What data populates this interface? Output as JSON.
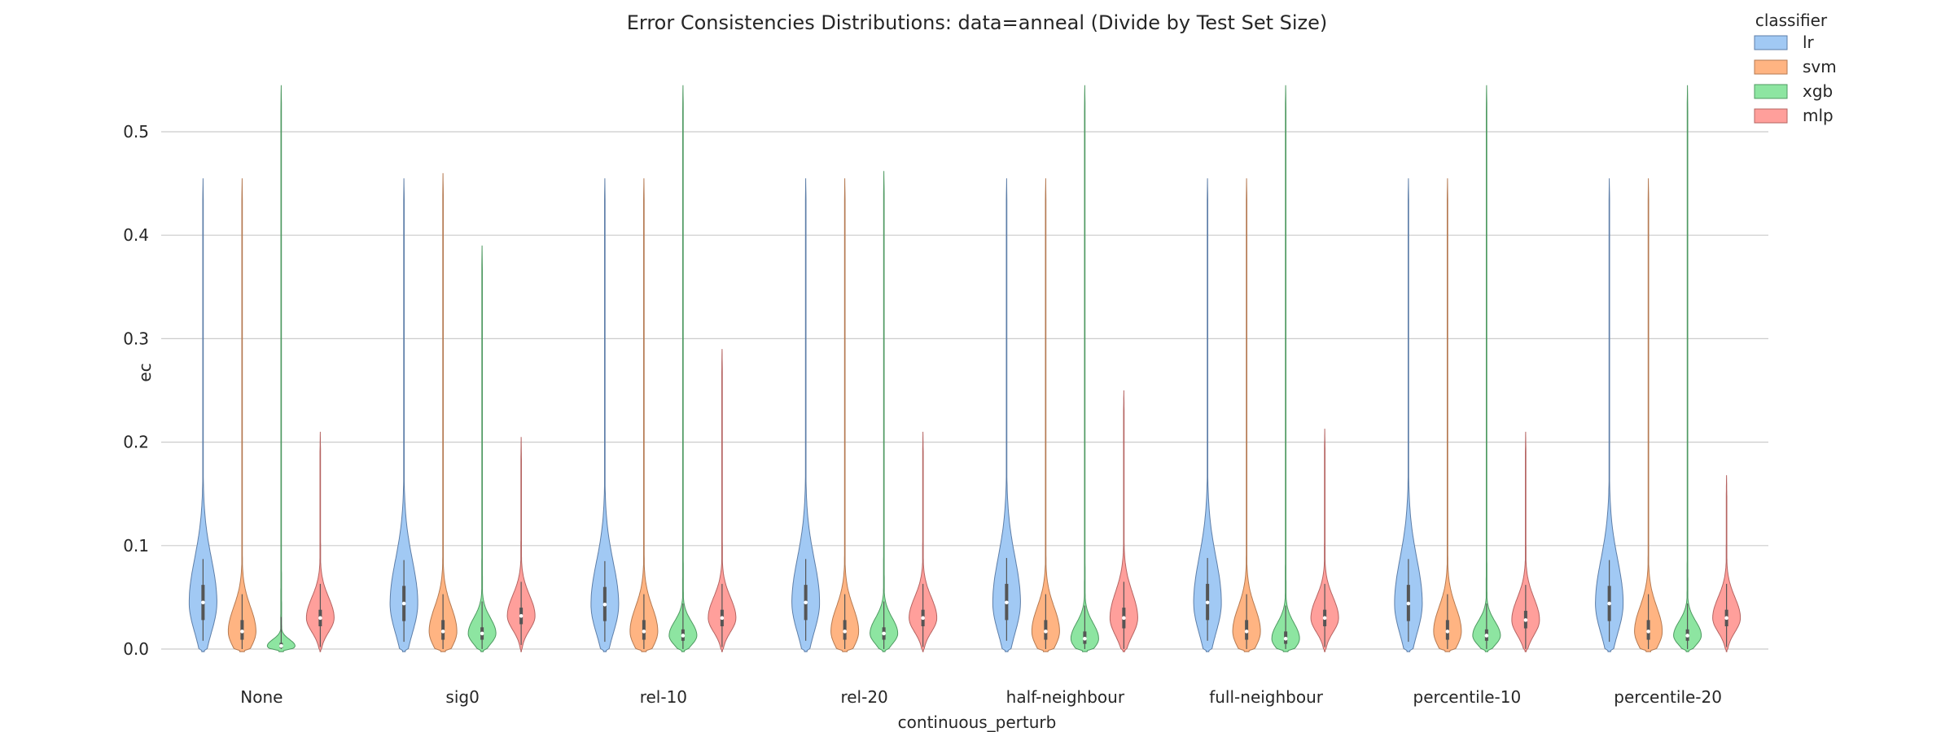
{
  "chart_data": {
    "type": "violin",
    "title": "Error Consistencies Distributions: data=anneal (Divide by Test Set Size)",
    "xlabel": "continuous_perturb",
    "ylabel": "ec",
    "ylim": [
      -0.015,
      0.545
    ],
    "yticks": [
      "0.0",
      "0.1",
      "0.2",
      "0.3",
      "0.4",
      "0.5"
    ],
    "grid": "horizontal",
    "legend_title": "classifier",
    "legend_position": "top-right",
    "categories": [
      "None",
      "sig0",
      "rel-10",
      "rel-20",
      "half-neighbour",
      "full-neighbour",
      "percentile-10",
      "percentile-20"
    ],
    "series": [
      {
        "name": "lr",
        "color": "#a1c9f4",
        "edge": "#5d7ea8",
        "max": [
          0.455,
          0.455,
          0.455,
          0.455,
          0.455,
          0.455,
          0.455,
          0.455
        ],
        "median": [
          0.045,
          0.044,
          0.043,
          0.045,
          0.045,
          0.045,
          0.044,
          0.044
        ],
        "q1": [
          0.028,
          0.027,
          0.027,
          0.028,
          0.028,
          0.028,
          0.027,
          0.027
        ],
        "q3": [
          0.062,
          0.061,
          0.06,
          0.062,
          0.063,
          0.063,
          0.062,
          0.061
        ]
      },
      {
        "name": "svm",
        "color": "#ffb482",
        "edge": "#b57a52",
        "max": [
          0.455,
          0.46,
          0.455,
          0.455,
          0.455,
          0.455,
          0.455,
          0.455
        ],
        "median": [
          0.017,
          0.017,
          0.017,
          0.017,
          0.017,
          0.017,
          0.017,
          0.017
        ],
        "q1": [
          0.009,
          0.009,
          0.009,
          0.009,
          0.009,
          0.009,
          0.009,
          0.009
        ],
        "q3": [
          0.028,
          0.028,
          0.028,
          0.028,
          0.028,
          0.028,
          0.028,
          0.028
        ]
      },
      {
        "name": "xgb",
        "color": "#8de5a1",
        "edge": "#4f9a62",
        "max": [
          0.545,
          0.39,
          0.545,
          0.462,
          0.545,
          0.545,
          0.545,
          0.545
        ],
        "median": [
          0.003,
          0.015,
          0.013,
          0.015,
          0.01,
          0.01,
          0.013,
          0.013
        ],
        "q1": [
          0.001,
          0.009,
          0.008,
          0.009,
          0.005,
          0.005,
          0.008,
          0.008
        ],
        "q3": [
          0.006,
          0.021,
          0.019,
          0.021,
          0.017,
          0.017,
          0.019,
          0.019
        ]
      },
      {
        "name": "mlp",
        "color": "#ff9f9b",
        "edge": "#b56462",
        "max": [
          0.21,
          0.205,
          0.29,
          0.21,
          0.25,
          0.213,
          0.21,
          0.168
        ],
        "median": [
          0.03,
          0.032,
          0.03,
          0.03,
          0.03,
          0.03,
          0.028,
          0.03
        ],
        "q1": [
          0.022,
          0.024,
          0.022,
          0.022,
          0.02,
          0.022,
          0.02,
          0.022
        ],
        "q3": [
          0.038,
          0.04,
          0.038,
          0.038,
          0.04,
          0.038,
          0.037,
          0.038
        ]
      }
    ]
  }
}
